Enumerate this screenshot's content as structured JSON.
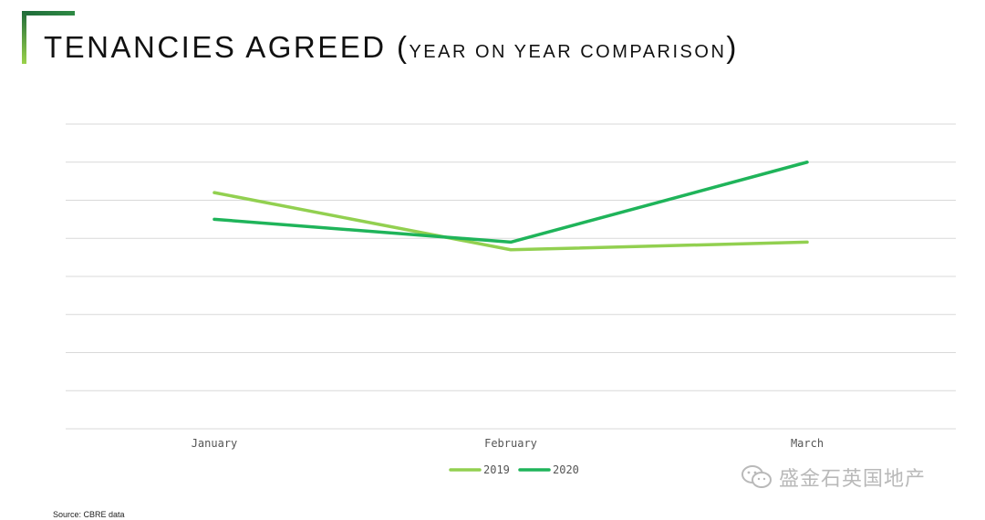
{
  "header": {
    "title_main": "TENANCIES AGREED",
    "title_paren_open": "(",
    "title_sub": "YEAR ON YEAR COMPARISON",
    "title_paren_close": ")"
  },
  "source_note": "Source: CBRE data",
  "watermark": {
    "text": "盛金石英国地产",
    "icon": "wechat-icon"
  },
  "colors": {
    "accent_dark": "#1f6b3a",
    "accent_light": "#8ccc3c",
    "series_2019": "#92d050",
    "series_2020": "#1fb45a"
  },
  "chart_data": {
    "type": "line",
    "categories": [
      "January",
      "February",
      "March"
    ],
    "series": [
      {
        "name": "2019",
        "values": [
          6.2,
          4.7,
          4.9
        ]
      },
      {
        "name": "2020",
        "values": [
          5.5,
          4.9,
          7.0
        ]
      }
    ],
    "ylim": [
      0,
      8
    ],
    "grid": true,
    "legend_position": "bottom"
  }
}
